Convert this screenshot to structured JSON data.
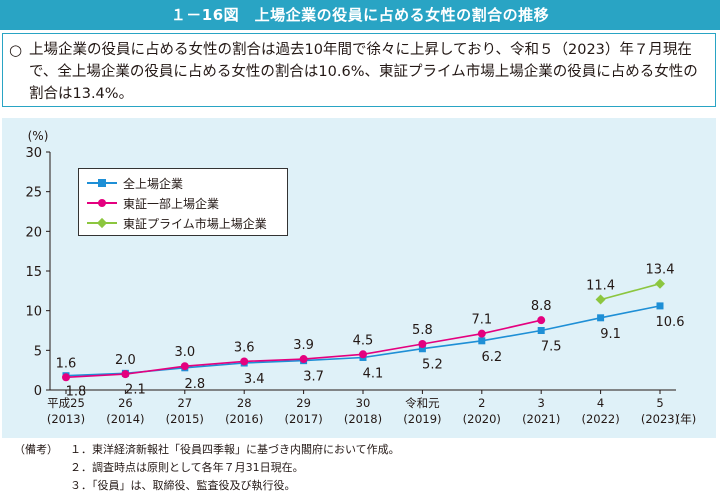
{
  "header": {
    "title": "１－16図　上場企業の役員に占める女性の割合の推移"
  },
  "summary": {
    "mark": "○",
    "text": "上場企業の役員に占める女性の割合は過去10年間で徐々に上昇しており、令和５（2023）年７月現在で、全上場企業の役員に占める女性の割合は10.6%、東証プライム市場上場企業の役員に占める女性の割合は13.4%。"
  },
  "notes": {
    "head": "（備考）",
    "items": [
      "１．東洋経済新報社「役員四季報」に基づき内閣府において作成。",
      "２．調査時点は原則として各年７月31日現在。",
      "３．「役員」は、取締役、監査役及び執行役。"
    ]
  },
  "chart_data": {
    "type": "line",
    "ylabel": "(%)",
    "xunit": "(年)",
    "ylim": [
      0,
      30
    ],
    "yticks": [
      0,
      5,
      10,
      15,
      20,
      25,
      30
    ],
    "categories": [
      [
        "平成25",
        "(2013)"
      ],
      [
        "26",
        "(2014)"
      ],
      [
        "27",
        "(2015)"
      ],
      [
        "28",
        "(2016)"
      ],
      [
        "29",
        "(2017)"
      ],
      [
        "30",
        "(2018)"
      ],
      [
        "令和元",
        "(2019)"
      ],
      [
        "2",
        "(2020)"
      ],
      [
        "3",
        "(2021)"
      ],
      [
        "4",
        "(2022)"
      ],
      [
        "5",
        "(2023)"
      ]
    ],
    "legend_position": "top-left",
    "series": [
      {
        "name": "全上場企業",
        "color": "#1e8fd6",
        "marker": "square",
        "values": [
          1.8,
          2.1,
          2.8,
          3.4,
          3.7,
          4.1,
          5.2,
          6.2,
          7.5,
          9.1,
          10.6
        ],
        "label_position": "below"
      },
      {
        "name": "東証一部上場企業",
        "color": "#e4007f",
        "marker": "circle",
        "values": [
          1.6,
          2.0,
          3.0,
          3.6,
          3.9,
          4.5,
          5.8,
          7.1,
          8.8,
          null,
          null
        ],
        "label_position": "above"
      },
      {
        "name": "東証プライム市場上場企業",
        "color": "#8cc63f",
        "marker": "diamond",
        "values": [
          null,
          null,
          null,
          null,
          null,
          null,
          null,
          null,
          null,
          11.4,
          13.4
        ],
        "label_position": "above"
      }
    ]
  }
}
